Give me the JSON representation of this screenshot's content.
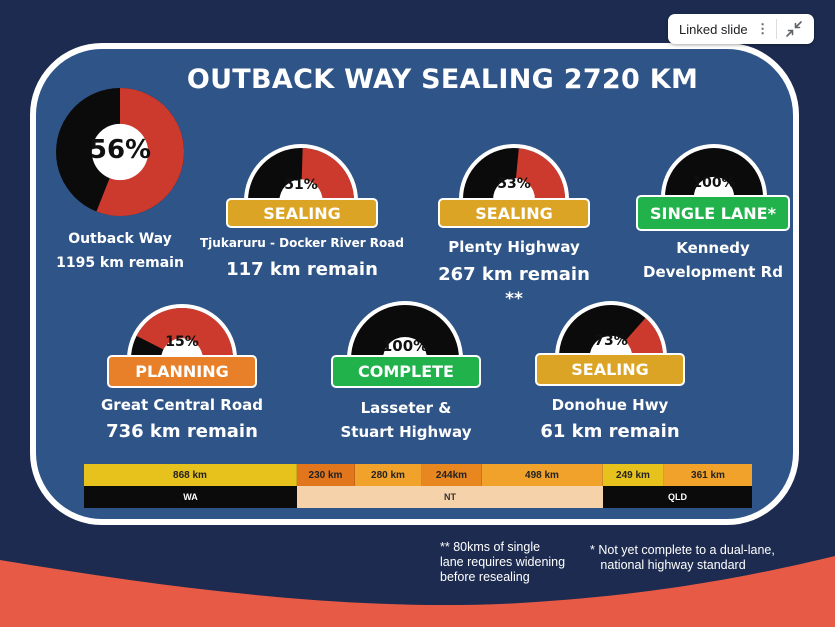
{
  "chip": {
    "label": "Linked slide"
  },
  "title": "OUTBACK WAY SEALING 2720 KM",
  "colors": {
    "red": "#cc3a2e",
    "black": "#0b0b0b",
    "ring": "#ffffff"
  },
  "gauges": {
    "outback": {
      "pct_label": "56%",
      "fraction": 0.56,
      "line1": "Outback Way",
      "line2": "1195 km remain"
    },
    "tjukaruru": {
      "pct_label": "51%",
      "fraction": 0.51,
      "status": "SEALING",
      "line1": "Tjukaruru - Docker River Road",
      "line2": "117 km remain"
    },
    "plenty": {
      "pct_label": "53%",
      "fraction": 0.53,
      "status": "SEALING",
      "line1": "Plenty Highway",
      "line2": "267 km remain",
      "line3": "**"
    },
    "kennedy": {
      "pct_label": "100%",
      "fraction": 1.0,
      "status": "SINGLE LANE*",
      "line1": "Kennedy",
      "line2": "Development Rd"
    },
    "central": {
      "pct_label": "15%",
      "fraction": 0.15,
      "status": "PLANNING",
      "line1": "Great Central Road",
      "line2": "736 km remain"
    },
    "lasseter": {
      "pct_label": "100%",
      "fraction": 1.0,
      "status": "COMPLETE",
      "line1": "Lasseter &",
      "line2": "Stuart Highway"
    },
    "donohue": {
      "pct_label": "73%",
      "fraction": 0.73,
      "status": "SEALING",
      "line1": "Donohue Hwy",
      "line2": "61 km remain"
    }
  },
  "segments": [
    {
      "label": "868 km",
      "color": "#e7c21c"
    },
    {
      "label": "230 km",
      "color": "#e2761c"
    },
    {
      "label": "280 km",
      "color": "#f0a22a"
    },
    {
      "label": "244km",
      "color": "#e8861f"
    },
    {
      "label": "498 km",
      "color": "#f0a22a"
    },
    {
      "label": "249 km",
      "color": "#e7c21c"
    },
    {
      "label": "361 km",
      "color": "#f0a22a"
    }
  ],
  "states": [
    {
      "label": "WA",
      "color": "#0b0b0b",
      "text_color": "#ffffff"
    },
    {
      "label": "NT",
      "color": "#f6d2ab",
      "text_color": "#333333"
    },
    {
      "label": "QLD",
      "color": "#0b0b0b",
      "text_color": "#ffffff"
    }
  ],
  "notes": {
    "widening": "** 80kms of single\nlane requires widening\nbefore resealing",
    "single_lane": "* Not yet complete to a dual-lane,\n   national highway standard"
  }
}
